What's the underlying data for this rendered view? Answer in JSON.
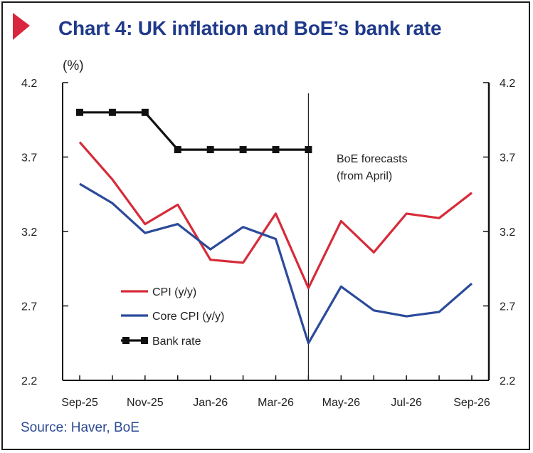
{
  "header": {
    "title": "Chart 4: UK inflation and BoE’s bank rate",
    "unit": "(%)"
  },
  "footer": {
    "source": "Source: Haver, BoE"
  },
  "colors": {
    "title": "#1f3a8a",
    "flag": "#d7263d",
    "cpi": "#d62b3a",
    "core": "#2b4a9a",
    "bank": "#111111",
    "source": "#2c4a94"
  },
  "chart_data": {
    "type": "line",
    "title": "Chart 4: UK inflation and BoE’s bank rate",
    "ylabel": "(%)",
    "xlabel": "",
    "ylim": [
      2.2,
      4.2
    ],
    "yticks": [
      "4.2",
      "3.7",
      "3.2",
      "2.7",
      "2.2"
    ],
    "ytick_values": [
      4.2,
      3.7,
      3.2,
      2.7,
      2.2
    ],
    "x": [
      "Sep-25",
      "Oct-25",
      "Nov-25",
      "Dec-25",
      "Jan-26",
      "Feb-26",
      "Mar-26",
      "Apr-26",
      "May-26",
      "Jun-26",
      "Jul-26",
      "Aug-26",
      "Sep-26"
    ],
    "xtick_labels": [
      "Sep-25",
      "Nov-25",
      "Jan-26",
      "Mar-26",
      "May-26",
      "Jul-26",
      "Sep-26"
    ],
    "xtick_index": [
      0,
      2,
      4,
      6,
      8,
      10,
      12
    ],
    "series": [
      {
        "name": "CPI (y/y)",
        "color": "#d62b3a",
        "marker": "none",
        "values": [
          3.8,
          3.55,
          3.25,
          3.38,
          3.01,
          2.99,
          3.32,
          2.82,
          3.27,
          3.06,
          3.32,
          3.29,
          3.46
        ]
      },
      {
        "name": "Core CPI (y/y)",
        "color": "#2b4a9a",
        "marker": "none",
        "values": [
          3.52,
          3.39,
          3.19,
          3.25,
          3.08,
          3.23,
          3.15,
          2.45,
          2.83,
          2.67,
          2.63,
          2.66,
          2.85
        ]
      },
      {
        "name": "Bank rate",
        "color": "#111111",
        "marker": "square",
        "values": [
          4.0,
          4.0,
          4.0,
          3.75,
          3.75,
          3.75,
          3.75,
          3.75,
          null,
          null,
          null,
          null,
          null
        ]
      }
    ],
    "annotation": {
      "lines": [
        "BoE forecasts",
        "(from April)"
      ],
      "at_x": "Apr-26"
    },
    "legend_placement": "bottom-left",
    "grid": false
  }
}
